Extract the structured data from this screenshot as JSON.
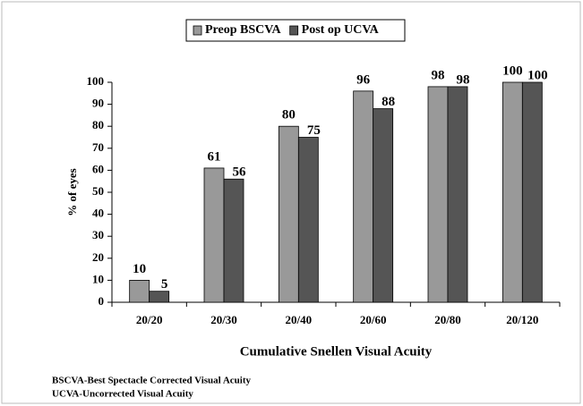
{
  "chart_data": {
    "type": "bar",
    "x_label": "Cumulative Snellen Visual Acuity",
    "y_label": "% of eyes",
    "categories": [
      "20/20",
      "20/30",
      "20/40",
      "20/60",
      "20/80",
      "20/120"
    ],
    "series": [
      {
        "name": "Preop BSCVA",
        "color": "#999999",
        "values": [
          10,
          61,
          80,
          96,
          98,
          100
        ]
      },
      {
        "name": "Post op UCVA",
        "color": "#555555",
        "values": [
          5,
          56,
          75,
          88,
          98,
          100
        ]
      }
    ],
    "ylim": [
      0,
      100
    ],
    "yticks": [
      0,
      10,
      20,
      30,
      40,
      50,
      60,
      70,
      80,
      90,
      100
    ],
    "legend": "top",
    "notes": [
      "BSCVA-Best Spectacle Corrected Visual Acuity",
      "UCVA-Uncorrected Visual Acuity"
    ]
  }
}
